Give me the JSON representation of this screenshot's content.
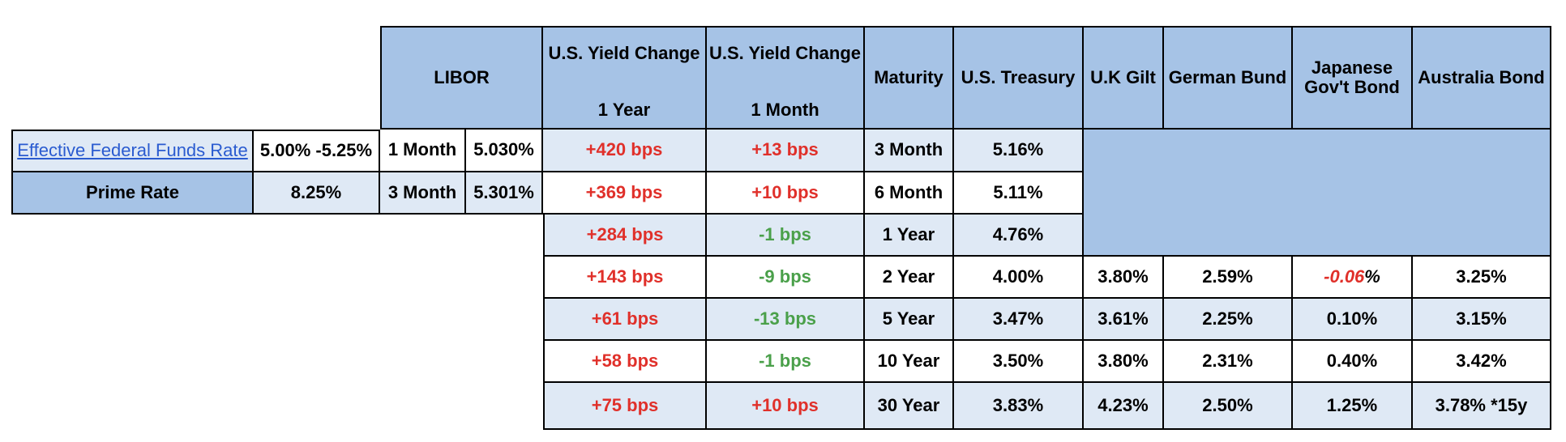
{
  "headers": {
    "libor": "LIBOR",
    "yield_change_1y_line1": "U.S. Yield Change",
    "yield_change_1y_line2": "1 Year",
    "yield_change_1m_line1": "U.S. Yield Change",
    "yield_change_1m_line2": "1 Month",
    "maturity": "Maturity",
    "us_treasury": "U.S. Treasury",
    "uk_gilt": "U.K Gilt",
    "german_bund": "German Bund",
    "japanese_line1": "Japanese",
    "japanese_line2": "Gov't Bond",
    "australia": "Australia Bond"
  },
  "rates": [
    {
      "label": "Effective Federal Funds Rate",
      "value": "5.00% -5.25%",
      "libor_term": "1 Month",
      "libor_value": "5.030%"
    },
    {
      "label": "Prime Rate",
      "value": "8.25%",
      "libor_term": "3 Month",
      "libor_value": "5.301%"
    }
  ],
  "rows": [
    {
      "yc1y": "+420 bps",
      "yc1m": "+13 bps",
      "maturity": "3 Month",
      "ust": "5.16%"
    },
    {
      "yc1y": "+369 bps",
      "yc1m": "+10 bps",
      "maturity": "6 Month",
      "ust": "5.11%"
    },
    {
      "yc1y": "+284 bps",
      "yc1m": "-1 bps",
      "maturity": "1 Year",
      "ust": "4.76%"
    },
    {
      "yc1y": "+143 bps",
      "yc1m": "-9 bps",
      "maturity": "2 Year",
      "ust": "4.00%",
      "gilt": "3.80%",
      "bund": "2.59%",
      "jgb_num": "-0.06",
      "jgb_pct": "%",
      "aus": "3.25%"
    },
    {
      "yc1y": "+61 bps",
      "yc1m": "-13 bps",
      "maturity": "5 Year",
      "ust": "3.47%",
      "gilt": "3.61%",
      "bund": "2.25%",
      "jgb": "0.10%",
      "aus": "3.15%"
    },
    {
      "yc1y": "+58 bps",
      "yc1m": "-1 bps",
      "maturity": "10 Year",
      "ust": "3.50%",
      "gilt": "3.80%",
      "bund": "2.31%",
      "jgb": "0.40%",
      "aus": "3.42%"
    },
    {
      "yc1y": "+75 bps",
      "yc1m": "+10 bps",
      "maturity": "30 Year",
      "ust": "3.83%",
      "gilt": "4.23%",
      "bund": "2.50%",
      "jgb": "1.25%",
      "aus": "3.78% *15y"
    }
  ],
  "colors": {
    "header": "#a6c3e6",
    "light_row": "#dfe9f5",
    "positive_change": "#e0302a",
    "negative_change": "#4aa04a",
    "link": "#2a5bd0"
  }
}
